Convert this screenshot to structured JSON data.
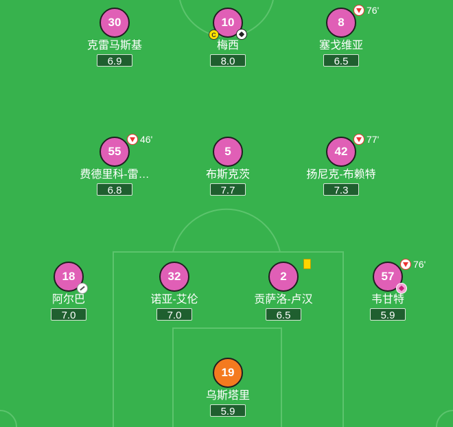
{
  "colors": {
    "pitch": "#37b24d",
    "player": "#e05fb6",
    "goalkeeper": "#f47a1f",
    "rating_bg": "#1f5f2f"
  },
  "players": {
    "crimasi": {
      "number": "30",
      "name": "克雷马斯基",
      "rating": "6.9"
    },
    "messi": {
      "number": "10",
      "name": "梅西",
      "rating": "8.0",
      "captain_label": "C"
    },
    "segovia": {
      "number": "8",
      "name": "塞戈维亚",
      "rating": "6.5",
      "sub_minute": "76'"
    },
    "federico": {
      "number": "55",
      "name": "费德里科-雷…",
      "rating": "6.8",
      "sub_minute": "46'"
    },
    "busquets": {
      "number": "5",
      "name": "布斯克茨",
      "rating": "7.7"
    },
    "yannick": {
      "number": "42",
      "name": "扬尼克-布赖特",
      "rating": "7.3",
      "sub_minute": "77'"
    },
    "alba": {
      "number": "18",
      "name": "阿尔巴",
      "rating": "7.0"
    },
    "noah": {
      "number": "32",
      "name": "诺亚-艾伦",
      "rating": "7.0"
    },
    "gonzalo": {
      "number": "2",
      "name": "贡萨洛-卢汉",
      "rating": "6.5"
    },
    "weigandt": {
      "number": "57",
      "name": "韦甘特",
      "rating": "5.9",
      "sub_minute": "76'"
    },
    "ustari": {
      "number": "19",
      "name": "乌斯塔里",
      "rating": "5.9"
    }
  }
}
